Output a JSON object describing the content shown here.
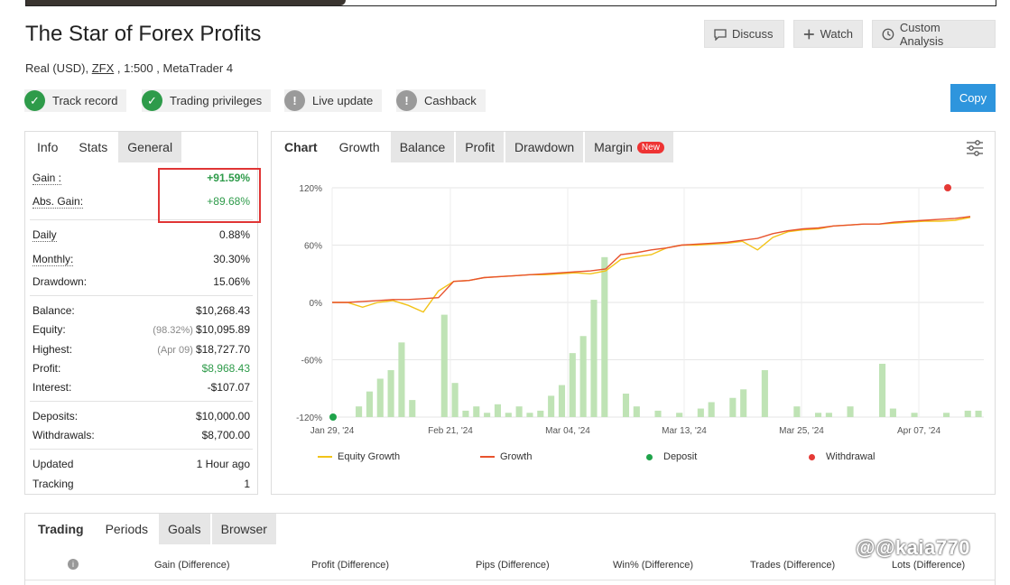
{
  "header": {
    "title": "The Star of Forex Profits",
    "account_type": "Real (USD),",
    "broker": "ZFX",
    "leverage": ", 1:500 ,",
    "platform": "MetaTrader 4",
    "buttons": {
      "discuss": "Discuss",
      "watch": "Watch",
      "custom_analysis": "Custom Analysis"
    },
    "copy_label": "Copy"
  },
  "badges": [
    {
      "label": "Track record",
      "status": "ok"
    },
    {
      "label": "Trading privileges",
      "status": "ok"
    },
    {
      "label": "Live update",
      "status": "na"
    },
    {
      "label": "Cashback",
      "status": "na"
    }
  ],
  "stats_tabs": [
    "Info",
    "Stats",
    "General"
  ],
  "stats": {
    "gain": {
      "label": "Gain :",
      "value": "+91.59%"
    },
    "abs_gain": {
      "label": "Abs. Gain:",
      "value": "+89.68%"
    },
    "daily": {
      "label": "Daily",
      "value": "0.88%"
    },
    "monthly": {
      "label": "Monthly:",
      "value": "30.30%"
    },
    "drawdown": {
      "label": "Drawdown:",
      "value": "15.06%"
    },
    "balance": {
      "label": "Balance:",
      "value": "$10,268.43"
    },
    "equity": {
      "label": "Equity:",
      "note": "(98.32%)",
      "value": "$10,095.89"
    },
    "highest": {
      "label": "Highest:",
      "note": "(Apr 09)",
      "value": "$18,727.70"
    },
    "profit": {
      "label": "Profit:",
      "value": "$8,968.43"
    },
    "interest": {
      "label": "Interest:",
      "value": "-$107.07"
    },
    "deposits": {
      "label": "Deposits:",
      "value": "$10,000.00"
    },
    "withdrawals": {
      "label": "Withdrawals:",
      "value": "$8,700.00"
    },
    "updated": {
      "label": "Updated",
      "value": "1 Hour ago"
    },
    "tracking": {
      "label": "Tracking",
      "value": "1"
    }
  },
  "chart_tabs": [
    "Chart",
    "Growth",
    "Balance",
    "Profit",
    "Drawdown",
    "Margin"
  ],
  "chart_new_badge": "New",
  "chart_data": {
    "type": "line",
    "y_ticks": [
      "120%",
      "60%",
      "0%",
      "-60%",
      "-120%"
    ],
    "ylim": [
      -120,
      120
    ],
    "x_ticks": [
      "Jan 29, '24",
      "Feb 21, '24",
      "Mar 04, '24",
      "Mar 13, '24",
      "Mar 25, '24",
      "Apr 07, '24"
    ],
    "series": [
      {
        "name": "Equity Growth",
        "color": "#f2c318",
        "values": [
          0,
          0,
          -5,
          0,
          2,
          -3,
          -10,
          12,
          22,
          23,
          26,
          27,
          28,
          29,
          29,
          30,
          31,
          30,
          33,
          45,
          48,
          50,
          57,
          60,
          60,
          61,
          62,
          64,
          55,
          68,
          74,
          76,
          77,
          80,
          81,
          82,
          82,
          83,
          84,
          85,
          85,
          86,
          89
        ]
      },
      {
        "name": "Growth",
        "color": "#e8532e",
        "values": [
          0,
          0,
          1,
          2,
          3,
          3,
          4,
          5,
          22,
          23,
          26,
          27,
          28,
          29,
          30,
          31,
          32,
          33,
          35,
          50,
          52,
          55,
          57,
          60,
          61,
          62,
          63,
          65,
          67,
          72,
          75,
          77,
          78,
          80,
          81,
          82,
          82,
          84,
          85,
          86,
          87,
          88,
          90
        ]
      }
    ],
    "bars": [
      0,
      0,
      5,
      12,
      18,
      22,
      35,
      8,
      0,
      0,
      48,
      16,
      3,
      5,
      2,
      6,
      2,
      5,
      2,
      3,
      10,
      15,
      30,
      38,
      55,
      75,
      0,
      11,
      5,
      0,
      3,
      0,
      2,
      0,
      4,
      7,
      0,
      9,
      13,
      0,
      22,
      0,
      0,
      5,
      0,
      2,
      2,
      0,
      5,
      0,
      0,
      25,
      4,
      0,
      2,
      0,
      0,
      2,
      0,
      3,
      3
    ],
    "markers": [
      {
        "name": "Deposit",
        "color": "#1fa34a"
      },
      {
        "name": "Withdrawal",
        "color": "#e53935"
      }
    ]
  },
  "periods_tabs": [
    "Trading",
    "Periods",
    "Goals",
    "Browser"
  ],
  "periods_columns": [
    "Gain (Difference)",
    "Profit (Difference)",
    "Pips (Difference)",
    "Win% (Difference)",
    "Trades (Difference)",
    "Lots (Difference)"
  ],
  "watermark": "@@kaia770"
}
